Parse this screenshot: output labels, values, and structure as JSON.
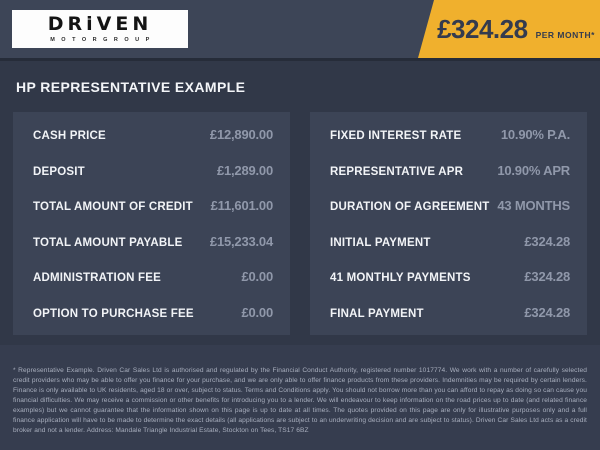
{
  "header": {
    "logo": {
      "name": "DRiVEN",
      "sub": "MOTORGROUP"
    },
    "price_flag": {
      "amount": "£324.28",
      "period": "PER MONTH*"
    }
  },
  "heading": "HP REPRESENTATIVE EXAMPLE",
  "panels": {
    "left": {
      "rows": [
        {
          "label": "CASH PRICE",
          "value": "£12,890.00"
        },
        {
          "label": "DEPOSIT",
          "value": "£1,289.00"
        },
        {
          "label": "TOTAL AMOUNT OF CREDIT",
          "value": "£11,601.00"
        },
        {
          "label": "TOTAL AMOUNT PAYABLE",
          "value": "£15,233.04"
        },
        {
          "label": "ADMINISTRATION FEE",
          "value": "£0.00"
        },
        {
          "label": "OPTION TO PURCHASE FEE",
          "value": "£0.00"
        }
      ]
    },
    "right": {
      "rows": [
        {
          "label": "FIXED INTEREST RATE",
          "value": "10.90% P.A."
        },
        {
          "label": "REPRESENTATIVE APR",
          "value": "10.90% APR"
        },
        {
          "label": "DURATION OF AGREEMENT",
          "value": "43 MONTHS"
        },
        {
          "label": "INITIAL PAYMENT",
          "value": "£324.28"
        },
        {
          "label": "41 MONTHLY PAYMENTS",
          "value": "£324.28"
        },
        {
          "label": "FINAL PAYMENT",
          "value": "£324.28"
        }
      ]
    }
  },
  "disclaimer": "* Representative Example. Driven Car Sales Ltd is authorised and regulated by the Financial Conduct Authority, registered number 1017774. We work with a number of carefully selected credit providers who may be able to offer you finance for your purchase, and we are only able to offer finance products from these providers. Indemnities may be required by certain lenders. Finance is only available to UK residents, aged 18 or over, subject to status. Terms and Conditions apply. You should not borrow more than you can afford to repay as doing so can cause you financial difficulties. We may receive a commission or other benefits for introducing you to a lender. We will endeavour to keep information on the road prices up to date (and related finance examples) but we cannot guarantee that the information shown on this page is up to date at all times. The quotes provided on this page are only for illustrative purposes only and a full finance application will have to be made to determine the exact details (all applications are subject to an underwriting decision and are subject to status). Driven Car Sales Ltd acts as a credit broker and not a lender. Address: Mandale Triangle Industrial Estate, Stockton on Tees, TS17 6BZ",
  "colors": {
    "accent_yellow": "#f0b02d",
    "header_band": "#3d4557",
    "body_bg": "#313848",
    "panel_bg": "#3c4456",
    "disclaimer_bg": "#363d4f",
    "label_text": "#f2f4f7",
    "value_text": "#9098aa"
  }
}
